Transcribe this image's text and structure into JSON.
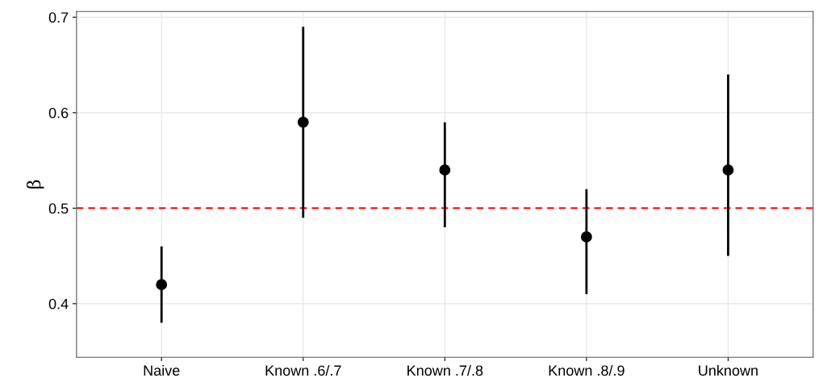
{
  "chart_data": {
    "type": "scatter",
    "ylabel": "β",
    "categories": [
      "Naive",
      "Known .6/.7",
      "Known .7/.8",
      "Known .8/.9",
      "Unknown"
    ],
    "series": [
      {
        "color": "#000000",
        "values": [
          0.42,
          0.59,
          0.54,
          0.47,
          0.54
        ],
        "errors": [
          [
            0.38,
            0.46
          ],
          [
            0.49,
            0.69
          ],
          [
            0.48,
            0.59
          ],
          [
            0.41,
            0.52
          ],
          [
            0.45,
            0.64
          ]
        ]
      }
    ],
    "ylim": [
      0.344,
      0.706
    ],
    "yticks": [
      0.4,
      0.5,
      0.6,
      0.7
    ],
    "ref_lines": [
      {
        "axis": "y",
        "value": 0.5,
        "color": "#ff0000",
        "line_style": "dashed"
      }
    ],
    "grid": true,
    "marker": "circle"
  }
}
